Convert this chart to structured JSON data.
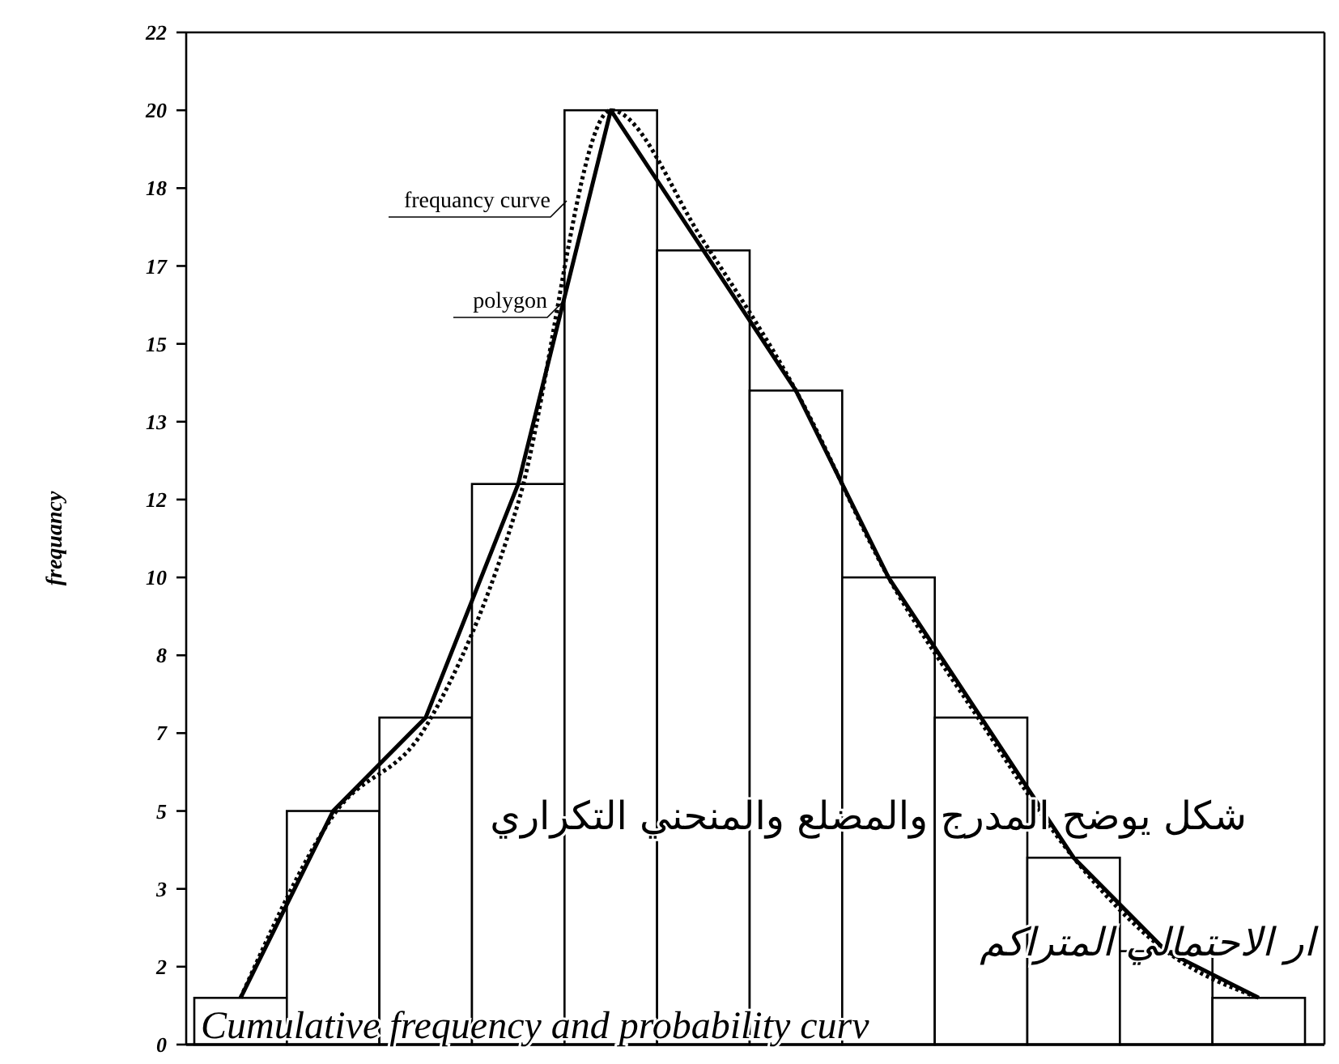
{
  "chart_data": {
    "type": "bar",
    "ylabel": "frequancy",
    "categories": [
      null,
      null,
      null,
      null,
      null,
      null,
      null,
      null,
      null,
      null,
      null,
      null
    ],
    "series": [
      {
        "color": "#ffffff",
        "values": [
          1,
          5,
          7,
          12,
          20,
          17,
          14,
          10,
          7,
          4,
          2,
          1
        ]
      },
      {
        "type": "line",
        "name": "polygon",
        "color": "#000000",
        "line_style": "solid",
        "values": [
          1,
          5,
          7,
          12,
          20,
          17,
          14,
          10,
          7,
          4,
          2,
          1
        ]
      },
      {
        "type": "line",
        "name": "frequancy curve",
        "color": "#000000",
        "line_style": "dotted",
        "values": [
          1,
          4.9,
          6.8,
          11.6,
          20,
          17.2,
          14,
          10,
          6.9,
          4,
          2,
          1
        ]
      }
    ],
    "ylim": [
      0,
      21.667
    ],
    "yticks": [
      0,
      {
        "value": 1.667,
        "label": "2"
      },
      {
        "value": 3.333,
        "label": "3"
      },
      5,
      {
        "value": 6.667,
        "label": "7"
      },
      {
        "value": 8.333,
        "label": "8"
      },
      10,
      {
        "value": 11.667,
        "label": "12"
      },
      {
        "value": 13.333,
        "label": "13"
      },
      15,
      {
        "value": 16.667,
        "label": "17"
      },
      {
        "value": 18.333,
        "label": "18"
      },
      20,
      {
        "value": 21.667,
        "label": "22"
      }
    ],
    "annotations": [
      "شكل يوضح المدرج والمضلع والمنحني التكراري",
      "ار الاحتمالي المتراكم",
      "Cumulative frequency and probability curv"
    ]
  }
}
